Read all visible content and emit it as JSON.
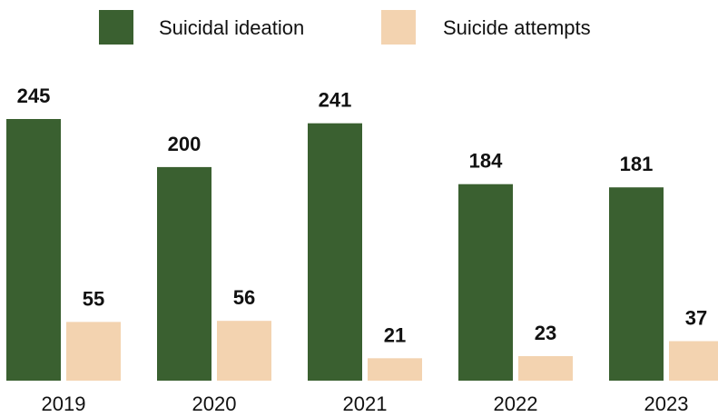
{
  "chart_data": {
    "type": "bar",
    "categories": [
      "2019",
      "2020",
      "2021",
      "2022",
      "2023"
    ],
    "series": [
      {
        "name": "Suicidal ideation",
        "values": [
          245,
          200,
          241,
          184,
          181
        ],
        "color": "#3a6030"
      },
      {
        "name": "Suicide attempts",
        "values": [
          55,
          56,
          21,
          23,
          37
        ],
        "color": "#f3d3b0"
      }
    ],
    "title": "",
    "xlabel": "",
    "ylabel": "",
    "ylim": [
      0,
      245
    ],
    "grid": false,
    "legend_position": "top-center",
    "data_labels": true
  }
}
